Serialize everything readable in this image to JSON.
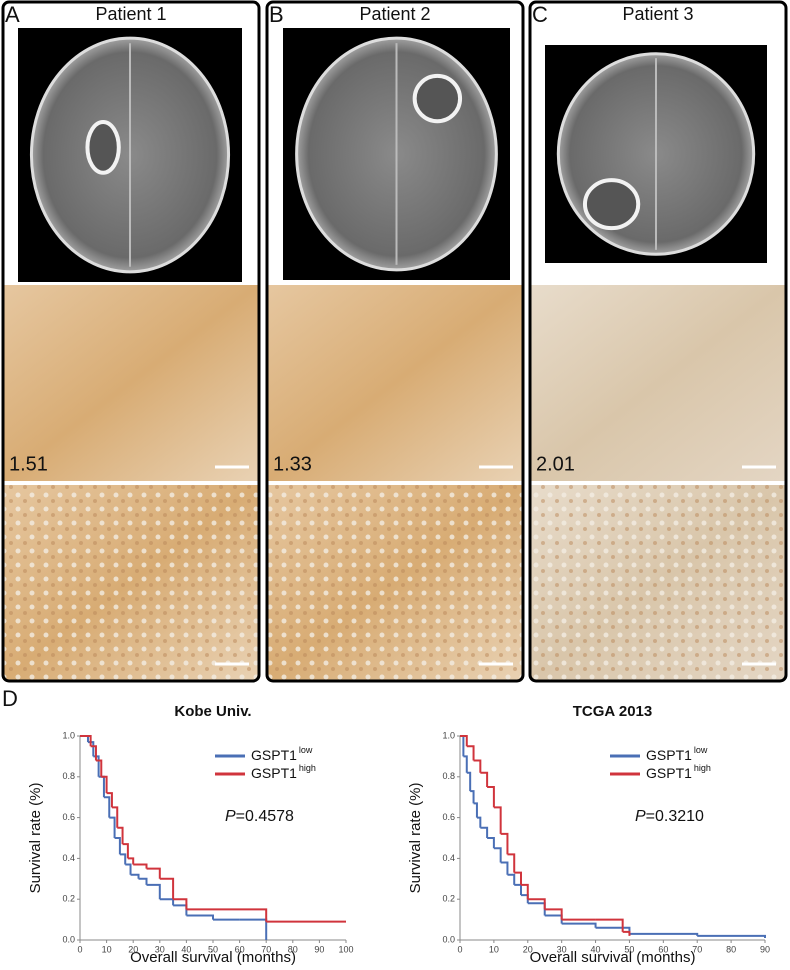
{
  "panels": [
    {
      "letter": "A",
      "title": "Patient 1",
      "score": 1.51
    },
    {
      "letter": "B",
      "title": "Patient 2",
      "score": 1.33
    },
    {
      "letter": "C",
      "title": "Patient 3",
      "score": 2.01
    }
  ],
  "panel_d_letter": "D",
  "chart_data": [
    {
      "type": "line",
      "title": "Kobe Univ.",
      "xlabel": "Overall survival (months)",
      "ylabel": "Survival rate (%)",
      "xlim": [
        0,
        100
      ],
      "xticks": [
        0,
        10,
        20,
        30,
        40,
        50,
        60,
        70,
        80,
        90,
        100
      ],
      "ylim": [
        0,
        1
      ],
      "yticks": [
        {
          "value": 0,
          "label": "0.0"
        },
        0.2,
        0.4,
        0.6,
        0.8,
        {
          "value": 1,
          "label": "1.0"
        }
      ],
      "p_label": "P",
      "p_value": "=0.4578",
      "series": [
        {
          "name": "GSPT1",
          "name_sup": "low",
          "color": "#4a6fb5",
          "x": [
            0,
            3,
            5,
            7,
            9,
            11,
            13,
            15,
            17,
            19,
            22,
            25,
            30,
            35,
            40,
            50,
            60,
            70
          ],
          "values": [
            1,
            0.97,
            0.9,
            0.8,
            0.7,
            0.6,
            0.5,
            0.42,
            0.37,
            0.32,
            0.3,
            0.27,
            0.2,
            0.17,
            0.12,
            0.1,
            0.1,
            0
          ]
        },
        {
          "name": "GSPT1",
          "name_sup": "high",
          "color": "#d0343c",
          "x": [
            0,
            4,
            6,
            8,
            10,
            12,
            14,
            16,
            18,
            20,
            25,
            30,
            35,
            40,
            50,
            70,
            100
          ],
          "values": [
            1,
            0.95,
            0.88,
            0.8,
            0.72,
            0.65,
            0.55,
            0.47,
            0.4,
            0.37,
            0.35,
            0.3,
            0.2,
            0.15,
            0.15,
            0.09,
            0.09
          ]
        }
      ]
    },
    {
      "type": "line",
      "title": "TCGA 2013",
      "xlabel": "Overall survival (months)",
      "ylabel": "Survival rate (%)",
      "xlim": [
        0,
        90
      ],
      "xticks": [
        0,
        10,
        20,
        30,
        40,
        50,
        60,
        70,
        80,
        90
      ],
      "ylim": [
        0,
        1
      ],
      "yticks": [
        {
          "value": 0,
          "label": "0.0"
        },
        0.2,
        0.4,
        0.6,
        0.8,
        {
          "value": 1,
          "label": "1.0"
        }
      ],
      "p_label": "P",
      "p_value": "=0.3210",
      "series": [
        {
          "name": "GSPT1",
          "name_sup": "low",
          "color": "#4a6fb5",
          "x": [
            0,
            1,
            2,
            3,
            4,
            5,
            6,
            8,
            10,
            12,
            14,
            16,
            18,
            20,
            25,
            30,
            40,
            50,
            70,
            90
          ],
          "values": [
            1,
            0.9,
            0.82,
            0.73,
            0.67,
            0.6,
            0.55,
            0.5,
            0.45,
            0.38,
            0.32,
            0.27,
            0.22,
            0.18,
            0.12,
            0.08,
            0.06,
            0.03,
            0.02,
            0.01
          ]
        },
        {
          "name": "GSPT1",
          "name_sup": "high",
          "color": "#d0343c",
          "x": [
            0,
            2,
            4,
            6,
            8,
            10,
            12,
            14,
            16,
            18,
            20,
            25,
            30,
            40,
            48,
            50
          ],
          "values": [
            1,
            0.95,
            0.88,
            0.82,
            0.75,
            0.65,
            0.52,
            0.42,
            0.33,
            0.27,
            0.2,
            0.15,
            0.1,
            0.1,
            0.04,
            0.02
          ]
        }
      ]
    }
  ]
}
